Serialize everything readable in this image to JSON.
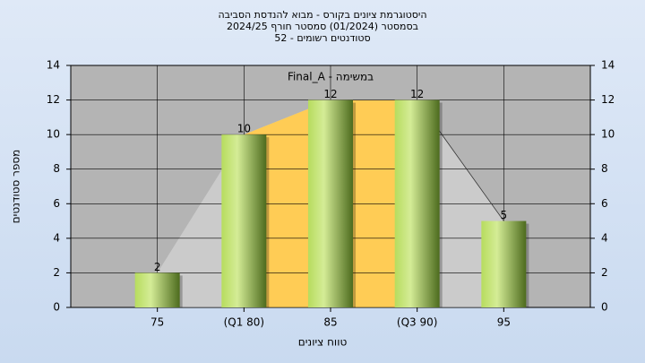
{
  "chart_data": {
    "type": "bar",
    "title": [
      "היסטוגרמת ציונים בקורס - מבוא להנדסת הסביבה",
      "בסמסטר  (01/2024)  סמסטר חורף 2024/25",
      "סטודנטים רשומים - 52"
    ],
    "subtitle": "במשימה - Final_A",
    "x_label": "טווח ציונים",
    "y_label": "מספר סטודנטים",
    "categories": [
      "75",
      "(Q1 80)",
      "85",
      "(Q3 90)",
      "95"
    ],
    "values": [
      2,
      10,
      12,
      12,
      5
    ],
    "ylim": [
      0,
      14
    ],
    "yticks": [
      0,
      2,
      4,
      6,
      8,
      10,
      12,
      14
    ],
    "y2lim": [
      0,
      14
    ],
    "y2ticks": [
      0,
      2,
      4,
      6,
      8,
      10,
      12,
      14
    ],
    "grid": true
  }
}
